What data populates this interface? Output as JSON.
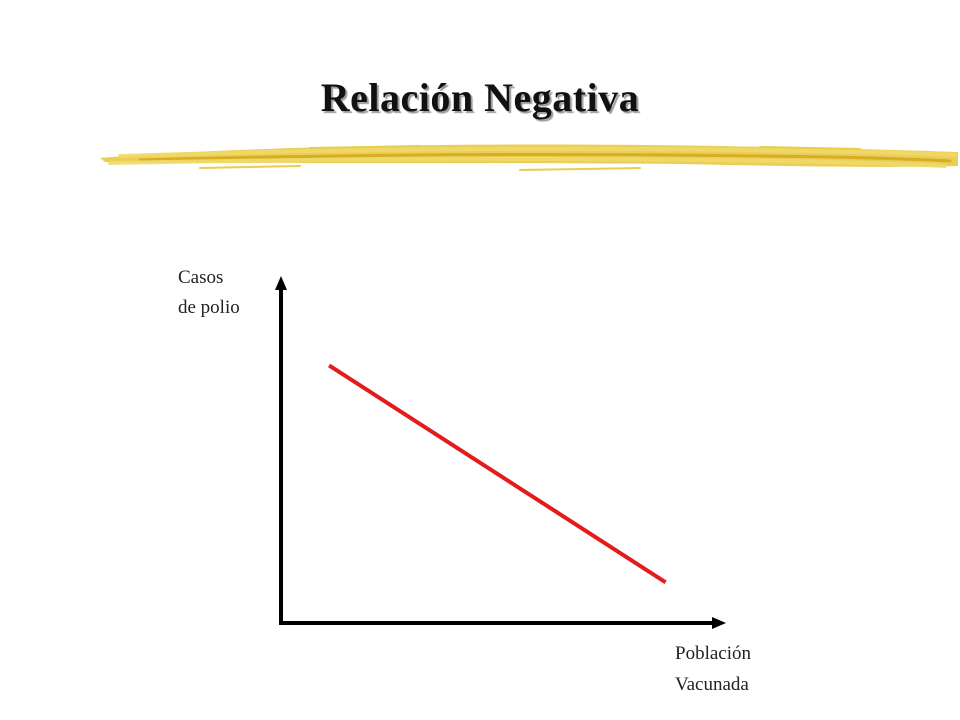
{
  "slide": {
    "title": "Relación Negativa",
    "underline_color": "#e7c53a"
  },
  "chart_data": {
    "type": "line",
    "title": "Relación Negativa",
    "ylabel": [
      "Casos",
      "de polio"
    ],
    "xlabel": [
      "Población",
      "Vacunada"
    ],
    "xlim": [
      0,
      10
    ],
    "ylim": [
      0,
      10
    ],
    "grid": false,
    "legend": "none",
    "series": [
      {
        "x": [
          1.1,
          8.8
        ],
        "y": [
          7.6,
          1.2
        ],
        "color": "#e31b1b"
      }
    ],
    "axis_color": "#000000"
  }
}
